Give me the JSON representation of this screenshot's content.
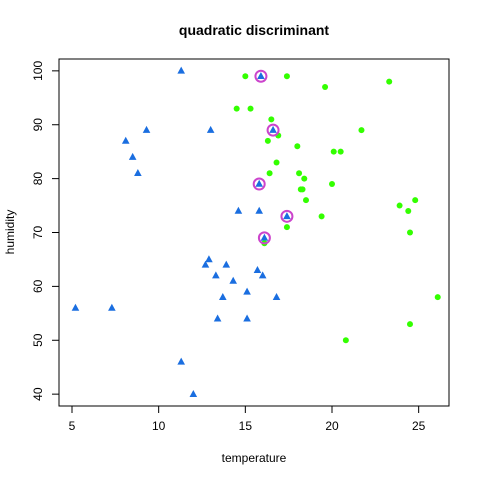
{
  "chart_data": {
    "type": "scatter",
    "title": "quadratic discriminant",
    "xlabel": "temperature",
    "ylabel": "humidity",
    "xlim": [
      4.25,
      26.75
    ],
    "ylim": [
      37.8,
      102.2
    ],
    "xticks": [
      5,
      10,
      15,
      20,
      25
    ],
    "yticks": [
      40,
      50,
      60,
      70,
      80,
      90,
      100
    ],
    "grid": false,
    "colors": {
      "class_a": "#1a6ee0",
      "class_b": "#33ff00",
      "highlight": "#cc44cc"
    },
    "series": [
      {
        "marker": "triangle",
        "color": "#1a6ee0",
        "x": [
          5.2,
          7.3,
          8.1,
          8.5,
          8.8,
          9.3,
          11.3,
          11.3,
          12.0,
          12.7,
          12.9,
          13.0,
          13.3,
          13.4,
          13.7,
          13.9,
          14.3,
          14.6,
          15.1,
          15.1,
          15.7,
          15.8,
          15.8,
          15.9,
          16.0,
          16.1,
          16.6,
          16.8,
          17.4
        ],
        "y": [
          56,
          56,
          87,
          84,
          81,
          89,
          100,
          46,
          40,
          64,
          65,
          89,
          62,
          54,
          58,
          64,
          61,
          74,
          59,
          54,
          63,
          74,
          79,
          99,
          62,
          69,
          89,
          58,
          73
        ]
      },
      {
        "marker": "circle",
        "color": "#33ff00",
        "x": [
          15.0,
          14.5,
          15.3,
          16.5,
          17.4,
          16.9,
          16.3,
          16.4,
          16.8,
          18.0,
          18.1,
          18.2,
          18.3,
          18.4,
          18.5,
          17.4,
          16.1,
          19.4,
          19.6,
          20.0,
          20.1,
          20.5,
          21.7,
          20.8,
          23.3,
          23.9,
          24.4,
          24.5,
          24.5,
          24.8,
          26.1
        ],
        "y": [
          99,
          93,
          93,
          91,
          99,
          88,
          87,
          81,
          83,
          86,
          81,
          78,
          78,
          80,
          76,
          71,
          68,
          73,
          97,
          79,
          85,
          85,
          89,
          50,
          98,
          75,
          74,
          70,
          53,
          76,
          58
        ]
      }
    ],
    "highlighted_points": {
      "marker": "ring",
      "color": "#cc44cc",
      "x": [
        15.9,
        16.6,
        15.8,
        17.4,
        16.1
      ],
      "y": [
        99,
        89,
        79,
        73,
        69
      ]
    }
  }
}
